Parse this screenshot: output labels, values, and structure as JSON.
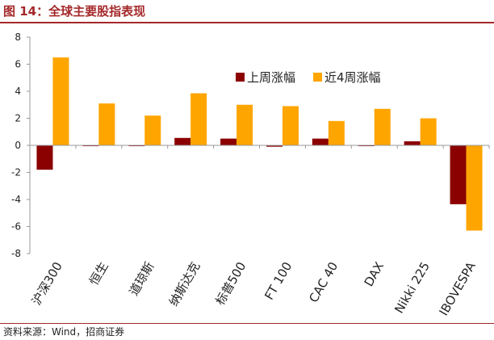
{
  "figure": {
    "title": "图 14：全球主要股指表现",
    "source": "资料来源：Wind，招商证券"
  },
  "colors": {
    "brand": "#a5282a",
    "series_week": "#8b0000",
    "series_4week": "#ffa500",
    "axis": "#999999"
  },
  "chart_data": {
    "type": "bar",
    "categories": [
      "沪深300",
      "恒生",
      "道琼斯",
      "纳斯达克",
      "标普500",
      "FT 100",
      "CAC 40",
      "DAX",
      "Nikki 225",
      "IBOVESPA"
    ],
    "series": [
      {
        "name": "上周涨幅",
        "color": "#8b0000",
        "values": [
          -1.8,
          -0.05,
          -0.02,
          0.55,
          0.5,
          -0.1,
          0.5,
          -0.05,
          0.3,
          -4.35
        ]
      },
      {
        "name": "近4周涨幅",
        "color": "#ffa500",
        "values": [
          6.5,
          3.1,
          2.2,
          3.85,
          3.0,
          2.9,
          1.8,
          2.7,
          2.0,
          -6.3
        ]
      }
    ],
    "yticks": [
      8,
      6,
      4,
      2,
      0,
      -2,
      -4,
      -6,
      -8
    ],
    "ylim": [
      -8,
      8
    ],
    "grid": false,
    "legend": "top-right"
  }
}
